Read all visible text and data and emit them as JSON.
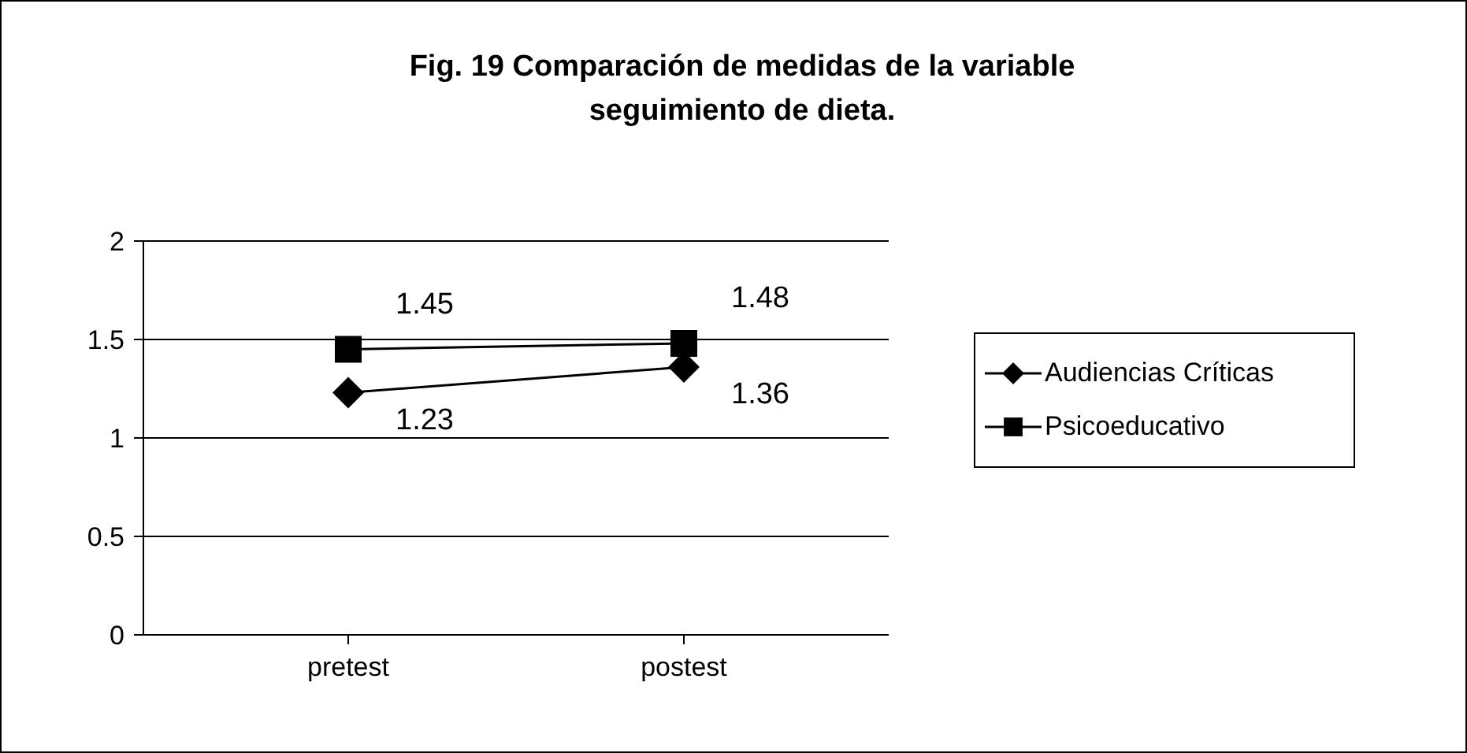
{
  "chart_data": {
    "type": "line",
    "title": "Fig. 19 Comparación de medidas de la variable seguimiento de dieta.",
    "categories": [
      "pretest",
      "postest"
    ],
    "series": [
      {
        "name": "Audiencias Críticas",
        "color": "#000000",
        "marker": "diamond",
        "values": [
          1.23,
          1.36
        ]
      },
      {
        "name": "Psicoeducativo",
        "color": "#000000",
        "marker": "square",
        "values": [
          1.45,
          1.48
        ]
      }
    ],
    "ylim": [
      0,
      2
    ],
    "yticks": [
      0,
      0.5,
      1,
      1.5,
      2
    ],
    "grid": "y",
    "legend": "right",
    "data_labels": true
  }
}
